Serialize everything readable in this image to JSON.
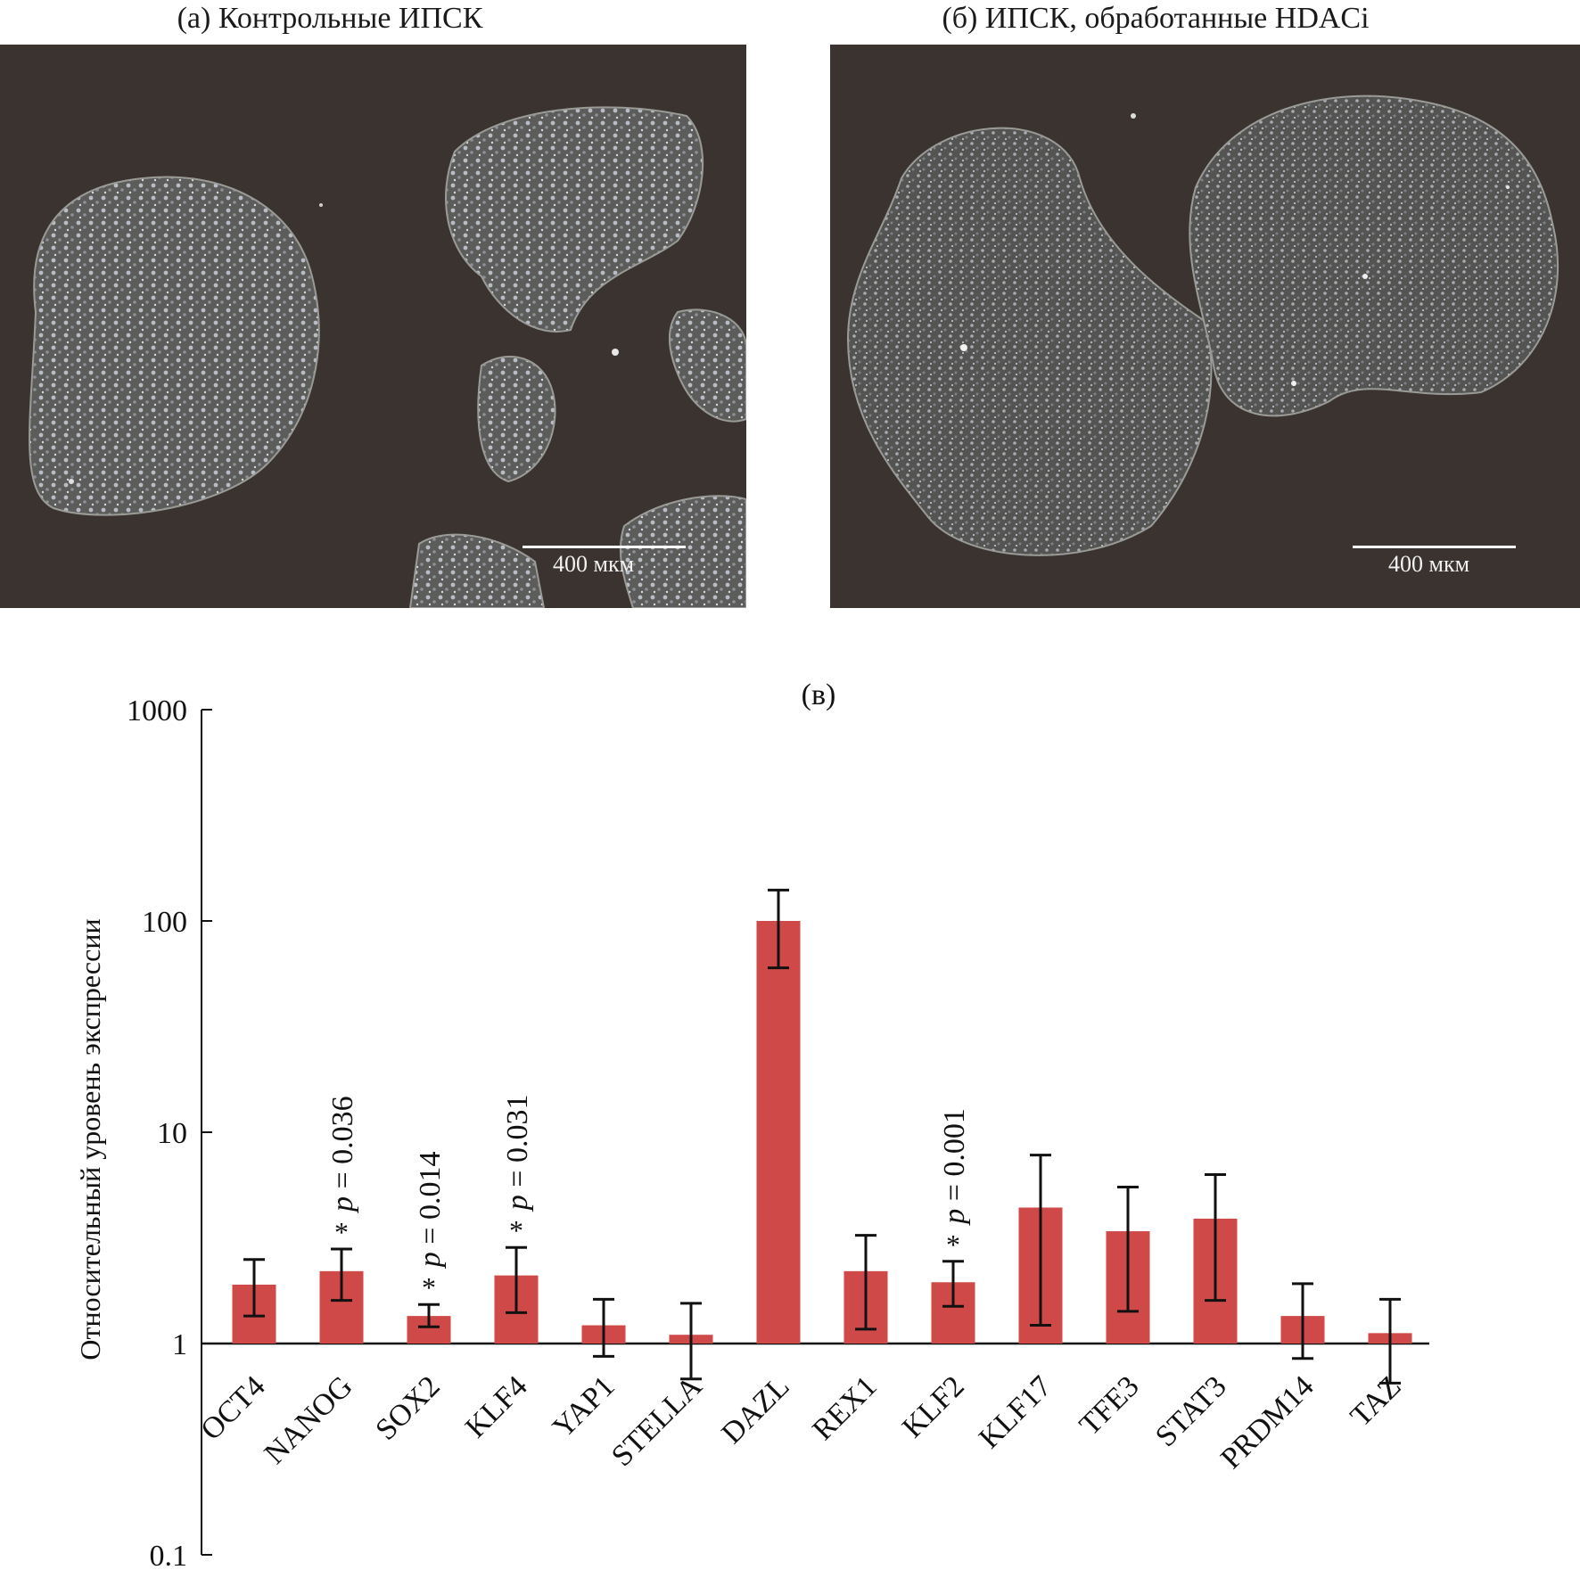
{
  "panels": {
    "a": {
      "title": "(а) Контрольные ИПСК",
      "scale": "400 мкм"
    },
    "b": {
      "title": "(б) ИПСК, обработанные HDACi",
      "scale": "400 мкм"
    }
  },
  "colors": {
    "bar": "#d04949",
    "micro_bg": "#3a3330",
    "colony": "#6f6f6b"
  },
  "chart_data": {
    "type": "bar",
    "title": "(в)",
    "ylabel": "Относительный уровень экспрессии",
    "yscale": "log",
    "ylim": [
      0.1,
      1000
    ],
    "yticks": [
      {
        "value": 1000,
        "label": "1000"
      },
      {
        "value": 100,
        "label": "100"
      },
      {
        "value": 10,
        "label": "10"
      },
      {
        "value": 1,
        "label": "1"
      },
      {
        "value": 0.1,
        "label": "0.1"
      }
    ],
    "baseline": 1,
    "categories": [
      "OCT4",
      "NANOG",
      "SOX2",
      "KLF4",
      "YAP1",
      "STELLA",
      "DAZL",
      "REX1",
      "KLF2",
      "KLF17",
      "TFE3",
      "STAT3",
      "PRDM14",
      "TAZ"
    ],
    "values": [
      1.9,
      2.2,
      1.35,
      2.1,
      1.22,
      1.1,
      100,
      2.2,
      1.95,
      4.4,
      3.4,
      3.9,
      1.35,
      1.12
    ],
    "err_low": [
      1.35,
      1.6,
      1.2,
      1.4,
      0.87,
      0.68,
      60,
      1.17,
      1.5,
      1.22,
      1.42,
      1.6,
      0.85,
      0.65
    ],
    "err_high": [
      2.5,
      2.8,
      1.53,
      2.85,
      1.62,
      1.55,
      140,
      3.25,
      2.45,
      7.8,
      5.5,
      6.3,
      1.92,
      1.62
    ],
    "annotations": [
      {
        "category": "NANOG",
        "star": "*",
        "p": "p",
        "text": " = 0.036"
      },
      {
        "category": "SOX2",
        "star": "*",
        "p": "p",
        "text": " = 0.014"
      },
      {
        "category": "KLF4",
        "star": "*",
        "p": "p",
        "text": " = 0.031"
      },
      {
        "category": "KLF2",
        "star": "*",
        "p": "p",
        "text": " = 0.001"
      }
    ]
  }
}
